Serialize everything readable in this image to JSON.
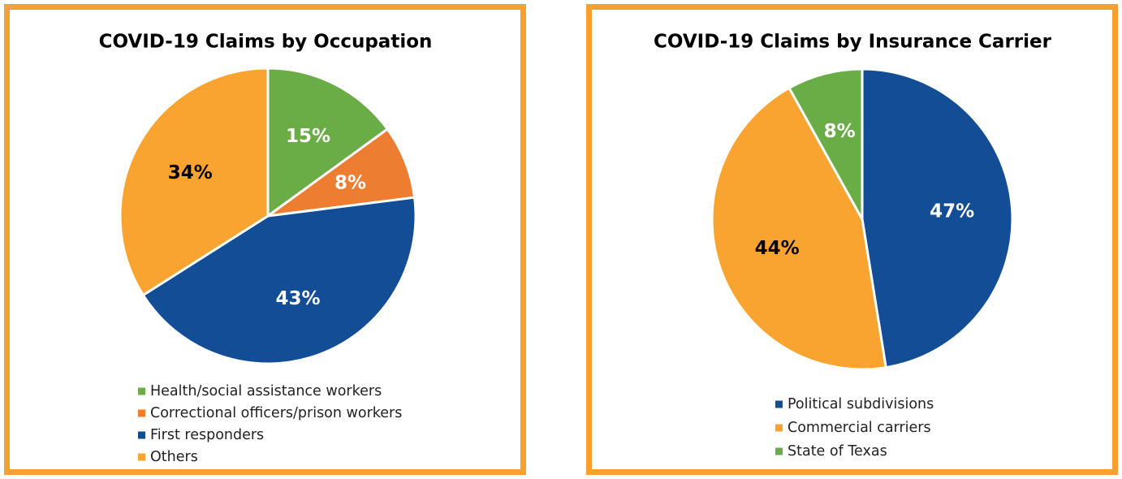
{
  "chart_data": [
    {
      "type": "pie",
      "title": "COVID-19 Claims by Occupation",
      "categories": [
        "Health/social assistance workers",
        "Correctional officers/prison workers",
        "First responders",
        "Others"
      ],
      "values": [
        15,
        8,
        43,
        34
      ],
      "value_labels": [
        "15%",
        "8%",
        "43%",
        "34%"
      ],
      "colors": [
        "#6aac46",
        "#ed7d31",
        "#124d96",
        "#f9a431"
      ],
      "label_colors": [
        "#ffffff",
        "#ffffff",
        "#ffffff",
        "#000000"
      ],
      "legend": "bottom"
    },
    {
      "type": "pie",
      "title": "COVID-19 Claims by Insurance Carrier",
      "categories": [
        "Political subdivisions",
        "Commercial carriers",
        "State of Texas"
      ],
      "values": [
        47,
        44,
        8
      ],
      "value_labels": [
        "47%",
        "44%",
        "8%"
      ],
      "colors": [
        "#124d96",
        "#f9a431",
        "#6aac46"
      ],
      "label_colors": [
        "#ffffff",
        "#000000",
        "#ffffff"
      ],
      "legend": "bottom"
    }
  ]
}
